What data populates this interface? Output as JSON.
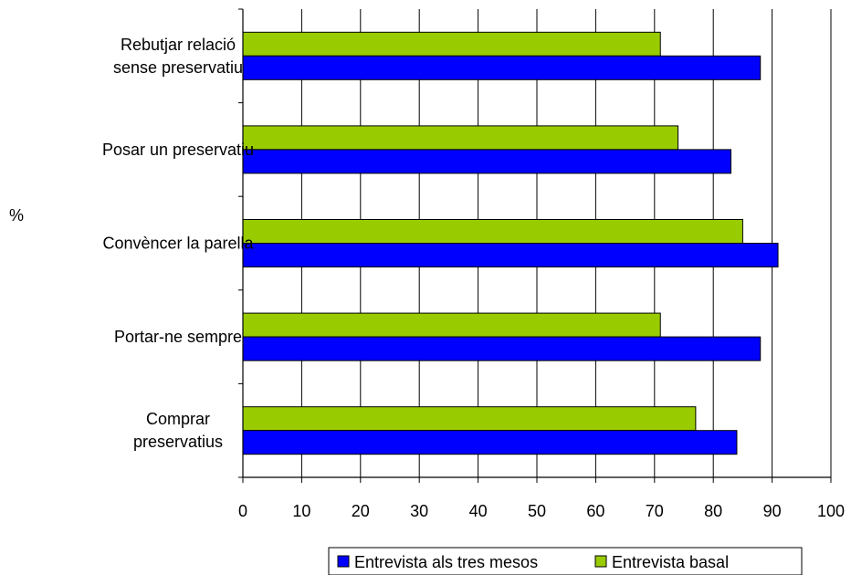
{
  "chart_data": {
    "type": "bar",
    "orientation": "horizontal",
    "categories": [
      [
        "Rebutjar relació",
        "sense preservatiu"
      ],
      [
        "Posar un preservatiu"
      ],
      [
        "Convèncer la parella"
      ],
      [
        "Portar-ne sempre"
      ],
      [
        "Comprar",
        "preservatius"
      ]
    ],
    "series": [
      {
        "name": "Entrevista basal",
        "color": "#99CC00",
        "values": [
          71,
          74,
          85,
          71,
          77
        ]
      },
      {
        "name": "Entrevista als tres mesos",
        "color": "#0000FF",
        "values": [
          88,
          83,
          91,
          88,
          84
        ]
      }
    ],
    "legend_order": [
      "Entrevista als tres mesos",
      "Entrevista basal"
    ],
    "legend_position": "bottom",
    "xlim": [
      0,
      100
    ],
    "xticks": [
      0,
      10,
      20,
      30,
      40,
      50,
      60,
      70,
      80,
      90,
      100
    ],
    "ylabel": "%",
    "grid": "vertical"
  }
}
